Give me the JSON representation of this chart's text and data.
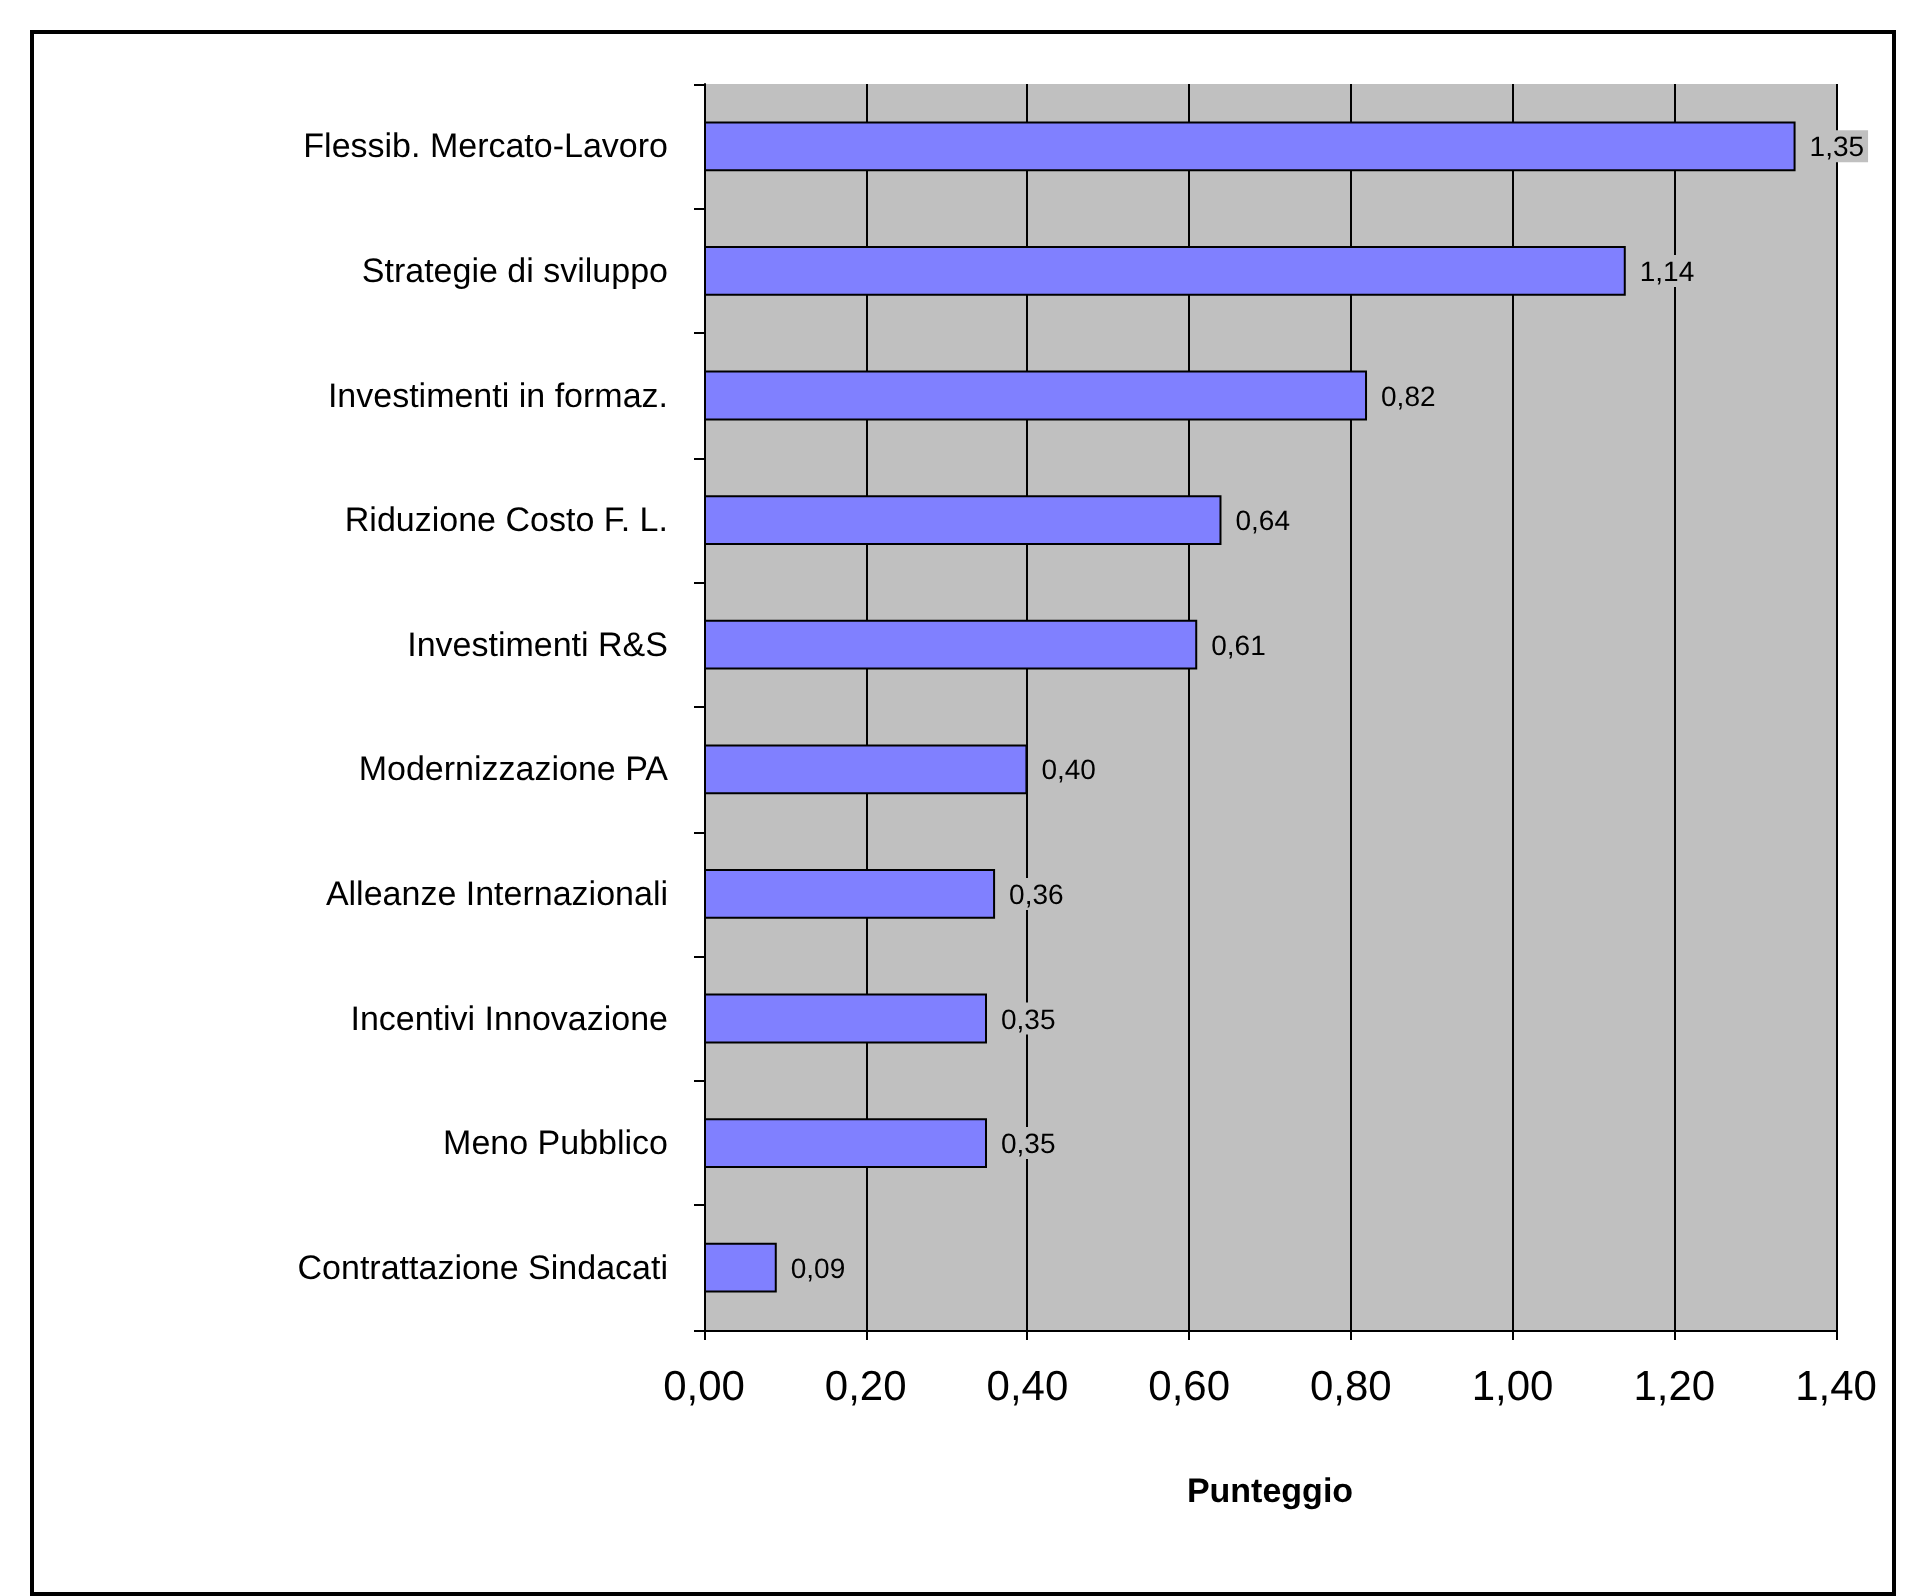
{
  "chart_data": {
    "type": "bar",
    "orientation": "horizontal",
    "xlabel": "Punteggio",
    "categories": [
      "Flessib. Mercato-Lavoro",
      "Strategie di sviluppo",
      "Investimenti in formaz.",
      "Riduzione Costo F. L.",
      "Investimenti R&S",
      "Modernizzazione PA",
      "Alleanze Internazionali",
      "Incentivi Innovazione",
      "Meno Pubblico",
      "Contrattazione Sindacati"
    ],
    "values": [
      1.35,
      1.14,
      0.82,
      0.64,
      0.61,
      0.4,
      0.36,
      0.35,
      0.35,
      0.09
    ],
    "value_labels": [
      "1,35",
      "1,14",
      "0,82",
      "0,64",
      "0,61",
      "0,40",
      "0,36",
      "0,35",
      "0,35",
      "0,09"
    ],
    "color": "#8080ff",
    "xlim": [
      0,
      1.4
    ],
    "xticks": [
      {
        "value": 0,
        "label": "0,00"
      },
      {
        "value": 0.2,
        "label": "0,20"
      },
      {
        "value": 0.4,
        "label": "0,40"
      },
      {
        "value": 0.6,
        "label": "0,60"
      },
      {
        "value": 0.8,
        "label": "0,80"
      },
      {
        "value": 1.0,
        "label": "1,00"
      },
      {
        "value": 1.2,
        "label": "1,20"
      },
      {
        "value": 1.4,
        "label": "1,40"
      }
    ],
    "grid": "x"
  }
}
